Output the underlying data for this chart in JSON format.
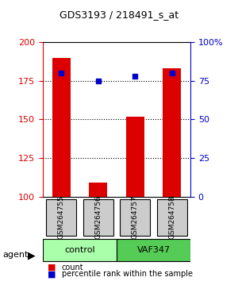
{
  "title": "GDS3193 / 218491_s_at",
  "samples": [
    "GSM264755",
    "GSM264756",
    "GSM264757",
    "GSM264758"
  ],
  "counts": [
    190,
    109,
    152,
    183
  ],
  "percentile_ranks": [
    80,
    75,
    78,
    80
  ],
  "groups": [
    "control",
    "control",
    "VAF347",
    "VAF347"
  ],
  "ylim_left": [
    100,
    200
  ],
  "ylim_right": [
    0,
    100
  ],
  "yticks_left": [
    100,
    125,
    150,
    175,
    200
  ],
  "yticks_right": [
    0,
    25,
    50,
    75,
    100
  ],
  "bar_color": "#dd0000",
  "dot_color": "#0000cc",
  "control_color": "#aaffaa",
  "vaf_color": "#55cc55",
  "label_bg_color": "#cccccc",
  "legend_count_color": "#dd0000",
  "legend_pct_color": "#0000cc",
  "agent_label": "agent",
  "group_labels": [
    "control",
    "VAF347"
  ],
  "legend_items": [
    "count",
    "percentile rank within the sample"
  ]
}
